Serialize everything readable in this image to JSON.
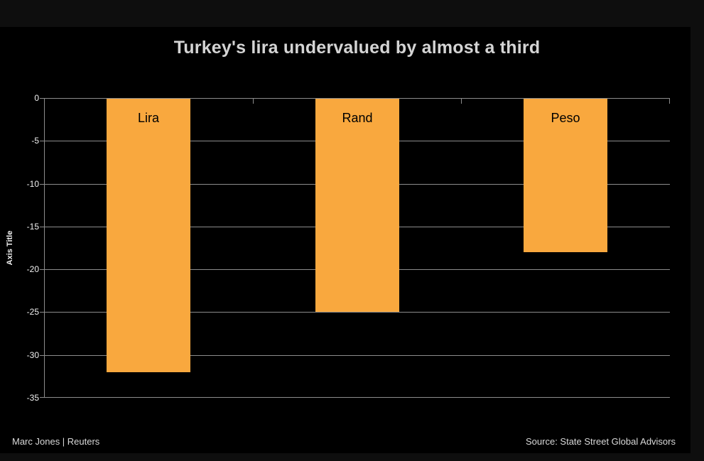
{
  "title": "Turkey's lira undervalued by almost a third",
  "y_axis_title": "Axis Title",
  "footer": {
    "credit": "Marc Jones | Reuters",
    "source": "Source: State Street Global Advisors"
  },
  "colors": {
    "bar": "#F9A83E",
    "page_background": "#0e0e0e",
    "panel_background": "#000000",
    "gridline": "#8c8c8c",
    "tick_label": "#f2f2f2",
    "title_text": "#d4d4d4",
    "footer_text": "#d9d9d9",
    "bar_label": "#000000"
  },
  "chart_data": {
    "type": "bar",
    "categories": [
      "Lira",
      "Rand",
      "Peso"
    ],
    "values": [
      -32,
      -25,
      -18
    ],
    "title": "Turkey's lira undervalued by almost a third",
    "xlabel": "",
    "ylabel": "Axis Title",
    "ylim": [
      -35,
      0
    ],
    "yticks": [
      0,
      -5,
      -10,
      -15,
      -20,
      -25,
      -30,
      -35
    ],
    "grid": true,
    "legend": false,
    "bar_color": "#F9A83E",
    "bar_label_position": "inside-top"
  }
}
